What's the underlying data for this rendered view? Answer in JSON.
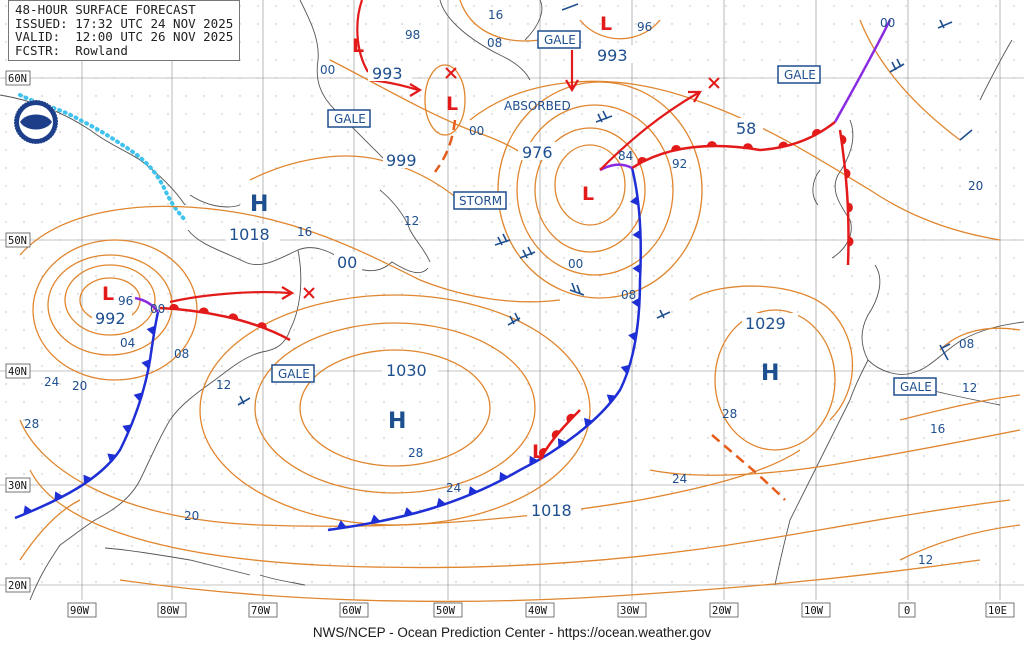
{
  "header": {
    "title": "48-HOUR SURFACE FORECAST",
    "issued": "ISSUED: 17:32 UTC 24 NOV 2025",
    "valid": "VALID:  12:00 UTC 26 NOV 2025",
    "fcstr": "FCSTR:  Rowland"
  },
  "footer": "NWS/NCEP - Ocean Prediction Center - https://ocean.weather.gov",
  "lat_labels": [
    "60N",
    "50N",
    "40N",
    "30N",
    "20N"
  ],
  "lon_labels": [
    "90W",
    "80W",
    "70W",
    "60W",
    "50W",
    "40W",
    "30W",
    "20W",
    "10W",
    "0",
    "10E"
  ],
  "warnings": [
    "GALE",
    "GALE",
    "STORM",
    "GALE",
    "GALE",
    "GALE"
  ],
  "absorbed_label": "ABSORBED",
  "highs": [
    {
      "symbol": "H",
      "pressure": "1018"
    },
    {
      "symbol": "H",
      "pressure": "1030"
    },
    {
      "symbol": "H",
      "pressure": "1029"
    }
  ],
  "lows": [
    {
      "symbol": "L",
      "pressure": "992"
    },
    {
      "symbol": "L",
      "pressure": "993"
    },
    {
      "symbol": "L",
      "pressure": "976"
    },
    {
      "symbol": "L",
      "pressure": "993"
    },
    {
      "symbol": "L",
      "pressure": ""
    },
    {
      "symbol": "L",
      "pressure": ""
    }
  ],
  "isobar_labels": [
    "98",
    "00",
    "16",
    "08",
    "96",
    "00",
    "999",
    "12",
    "16",
    "00",
    "84",
    "92",
    "58",
    "00",
    "20",
    "96",
    "00",
    "04",
    "08",
    "08",
    "12",
    "24",
    "20",
    "28",
    "28",
    "24",
    "08",
    "12",
    "16",
    "28",
    "24",
    "20",
    "1018",
    "12",
    "00"
  ],
  "colors": {
    "isobar": "#e0862f",
    "warning_text": "#1e4f8f",
    "cold_front": "#1f2fd6",
    "warm_front": "#e31a1a",
    "occluded_front": "#8a2be2",
    "ice_edge": "#3fc3ee",
    "trough": "#e65c1a"
  },
  "icons": [
    "noaa-logo-icon",
    "low-center-icon",
    "high-center-icon",
    "dissipating-x-icon",
    "wind-barb-icon"
  ]
}
